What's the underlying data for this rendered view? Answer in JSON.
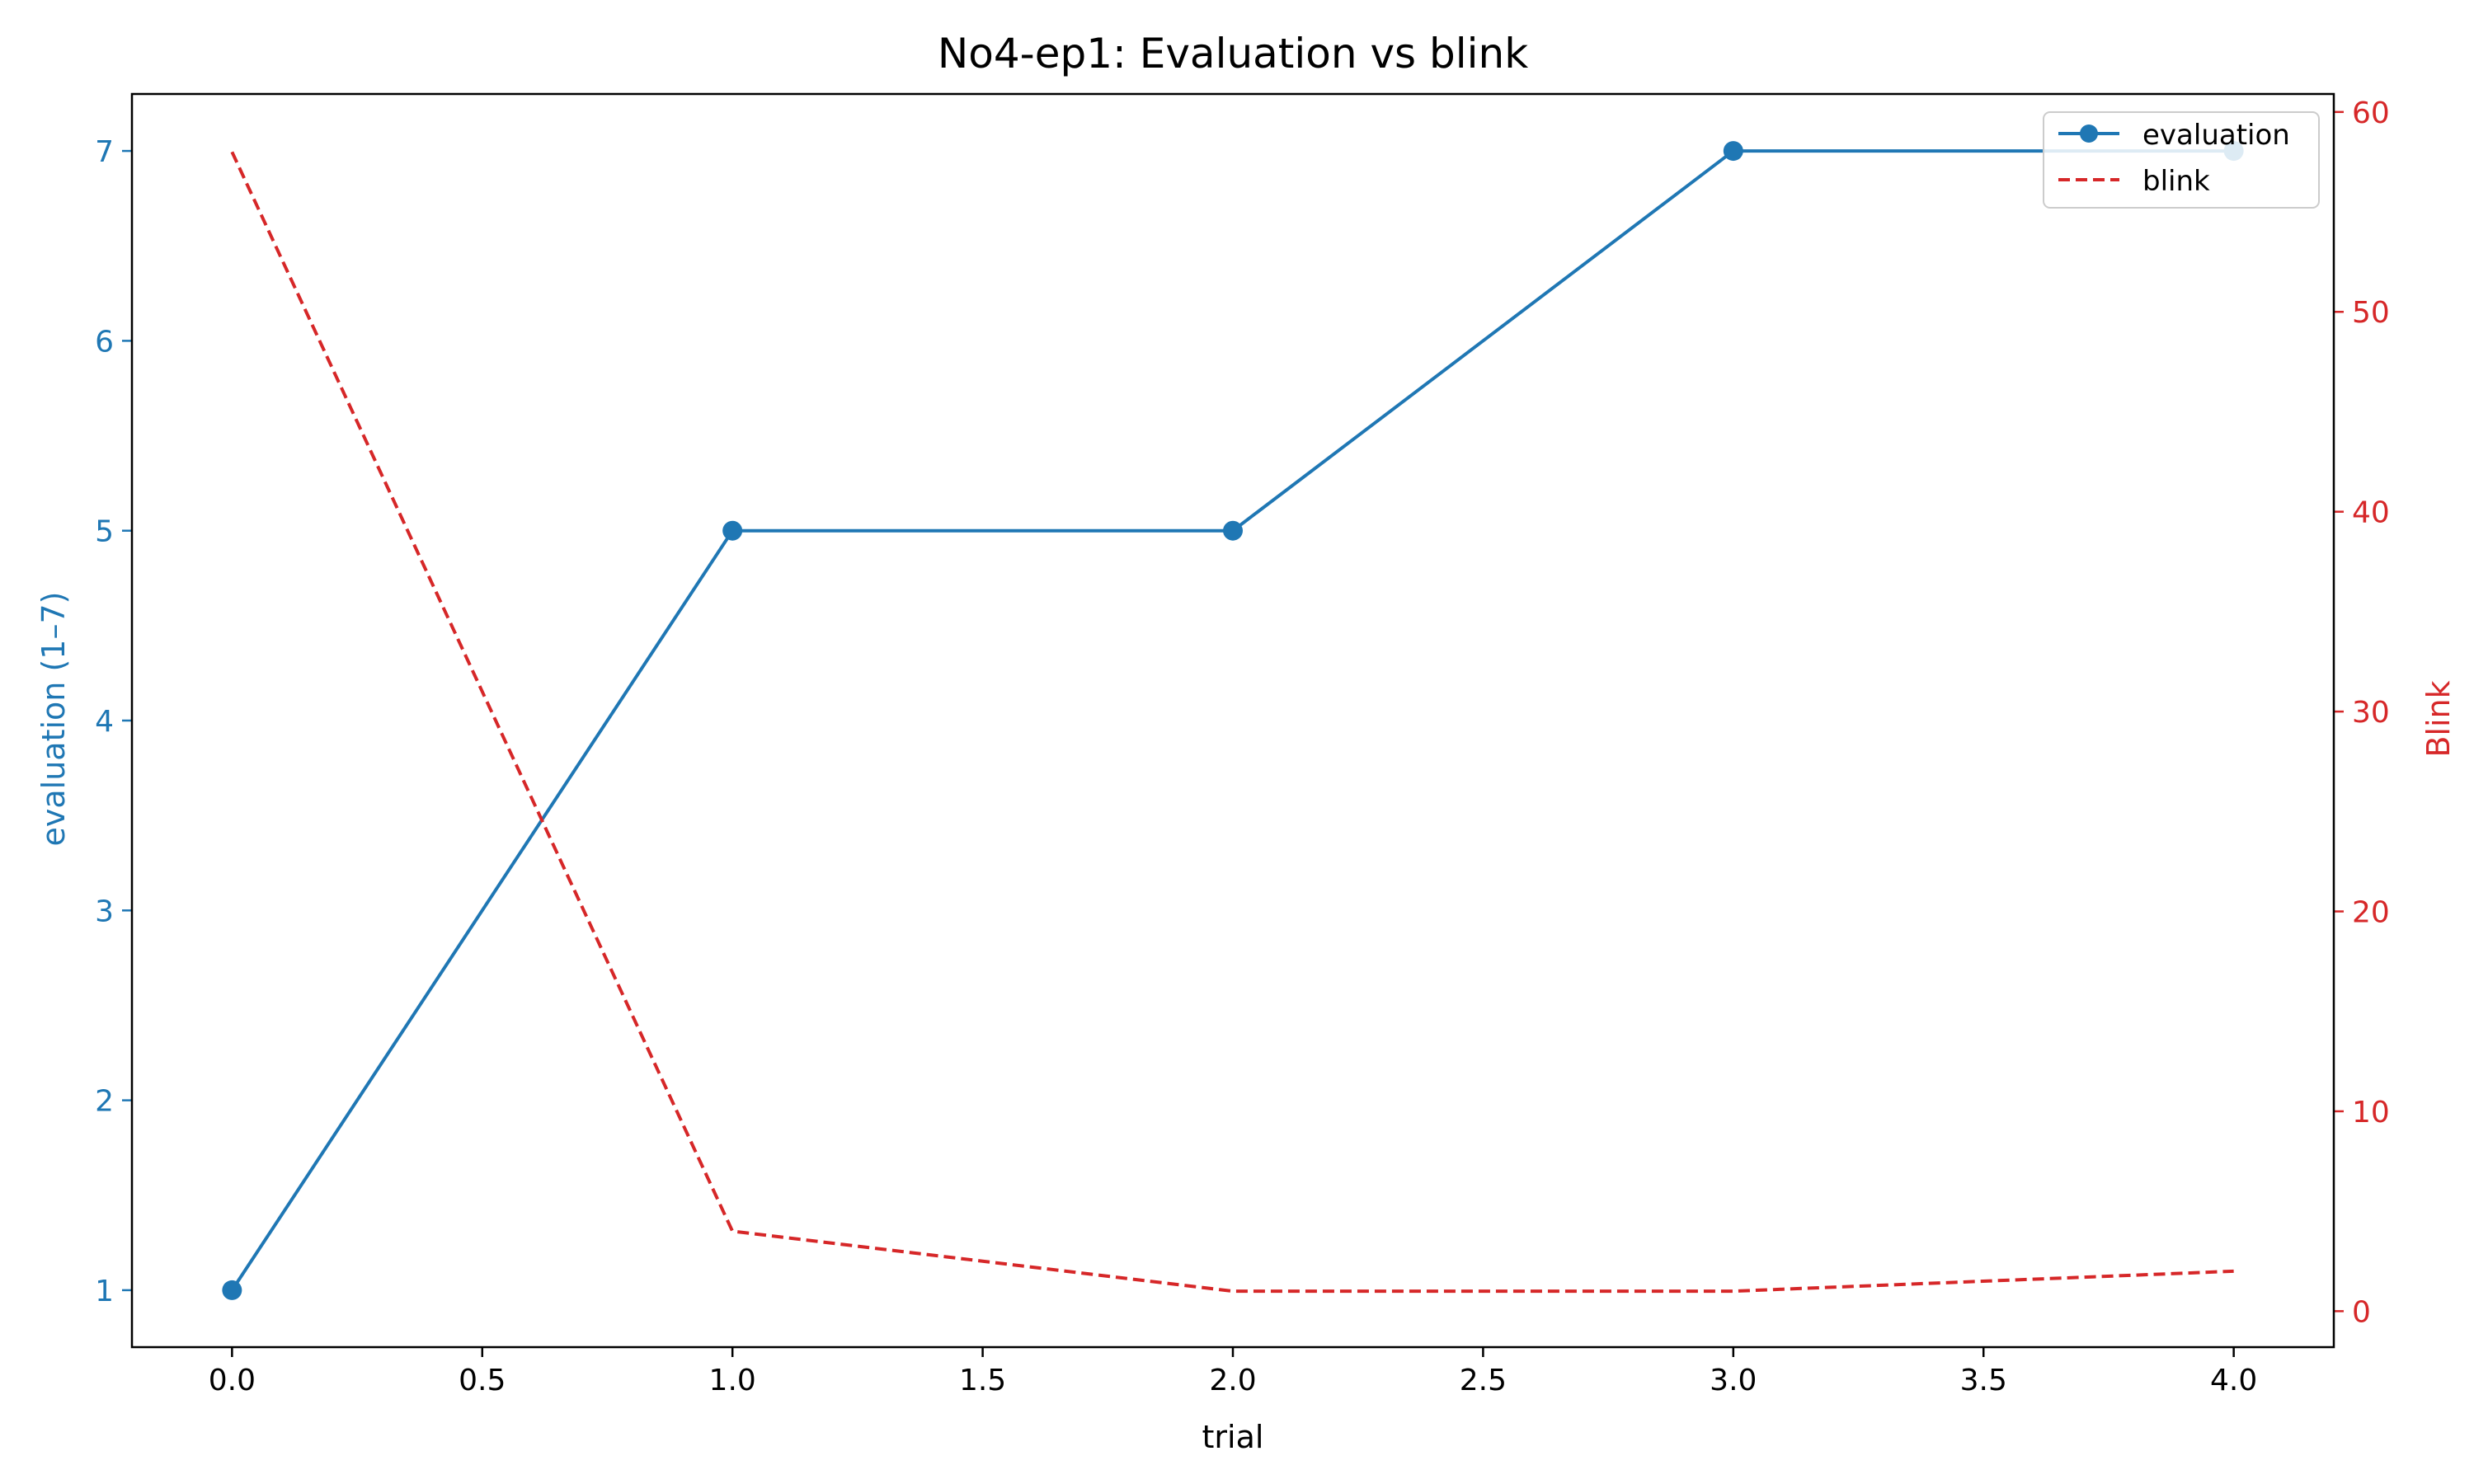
{
  "chart_data": {
    "type": "line",
    "title": "No4-ep1: Evaluation vs blink",
    "xlabel": "trial",
    "ylabel_left": "evaluation (1–7)",
    "ylabel_right": "Blink",
    "x": [
      0,
      1,
      2,
      3,
      4
    ],
    "xlim": [
      -0.2,
      4.2
    ],
    "ylim_left": [
      0.7,
      7.3
    ],
    "ylim_right": [
      -1.8,
      60.9
    ],
    "x_ticks": [
      "0.0",
      "0.5",
      "1.0",
      "1.5",
      "2.0",
      "2.5",
      "3.0",
      "3.5",
      "4.0"
    ],
    "y_ticks_left": [
      "1",
      "2",
      "3",
      "4",
      "5",
      "6",
      "7"
    ],
    "y_ticks_right": [
      "0",
      "10",
      "20",
      "30",
      "40",
      "50",
      "60"
    ],
    "series": [
      {
        "name": "evaluation",
        "axis": "left",
        "values": [
          1,
          5,
          5,
          7,
          7
        ],
        "color": "#1f77b4",
        "style": "solid",
        "marker": "circle"
      },
      {
        "name": "blink",
        "axis": "right",
        "values": [
          58,
          4,
          1,
          1,
          2
        ],
        "color": "#d62728",
        "style": "dashed",
        "marker": "none"
      }
    ],
    "legend": {
      "position": "top-right",
      "entries": [
        "evaluation",
        "blink"
      ]
    },
    "grid": false
  },
  "colors": {
    "left_axis": "#1f77b4",
    "right_axis": "#d62728",
    "frame": "#000000"
  }
}
